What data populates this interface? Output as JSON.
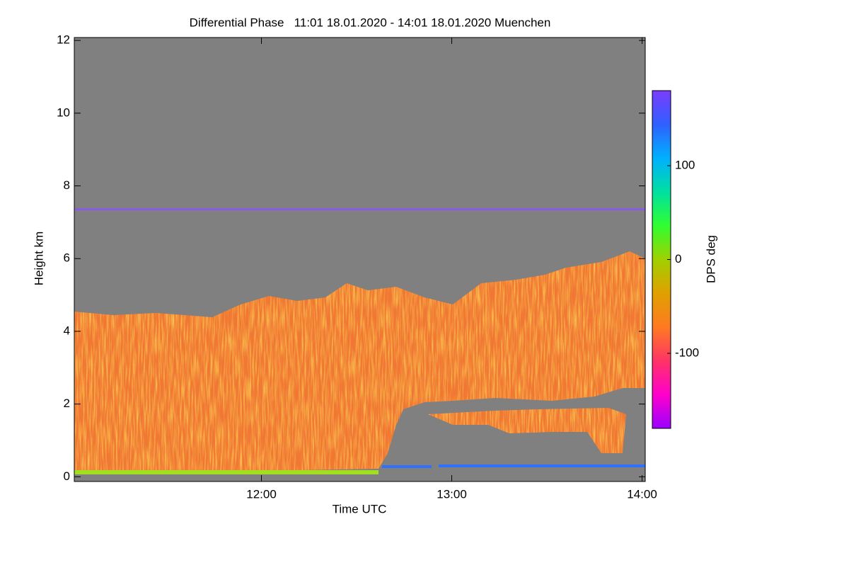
{
  "chart_data": {
    "type": "heatmap",
    "title": "Differential Phase   11:01 18.01.2020 - 14:01 18.01.2020 Muenchen",
    "x_label": "Time UTC",
    "y_label": "Height km",
    "xlim": [
      661,
      841
    ],
    "xticks": [
      {
        "value": 720,
        "label": "12:00"
      },
      {
        "value": 780,
        "label": "13:00"
      },
      {
        "value": 840,
        "label": "14:00"
      }
    ],
    "ylim": [
      -0.13,
      12.08
    ],
    "yticks": [
      0,
      2,
      4,
      6,
      8,
      10,
      12
    ],
    "colorbar": {
      "label": "DPS deg",
      "lim": [
        -180,
        180
      ],
      "ticks": [
        -100,
        0,
        100
      ],
      "colors": [
        "#9a00ff",
        "#ff00cc",
        "#ff3366",
        "#ff7a22",
        "#e0a000",
        "#a0d000",
        "#30ff30",
        "#00e0a0",
        "#00b0ff",
        "#3060ff",
        "#7a3cff"
      ]
    }
  }
}
